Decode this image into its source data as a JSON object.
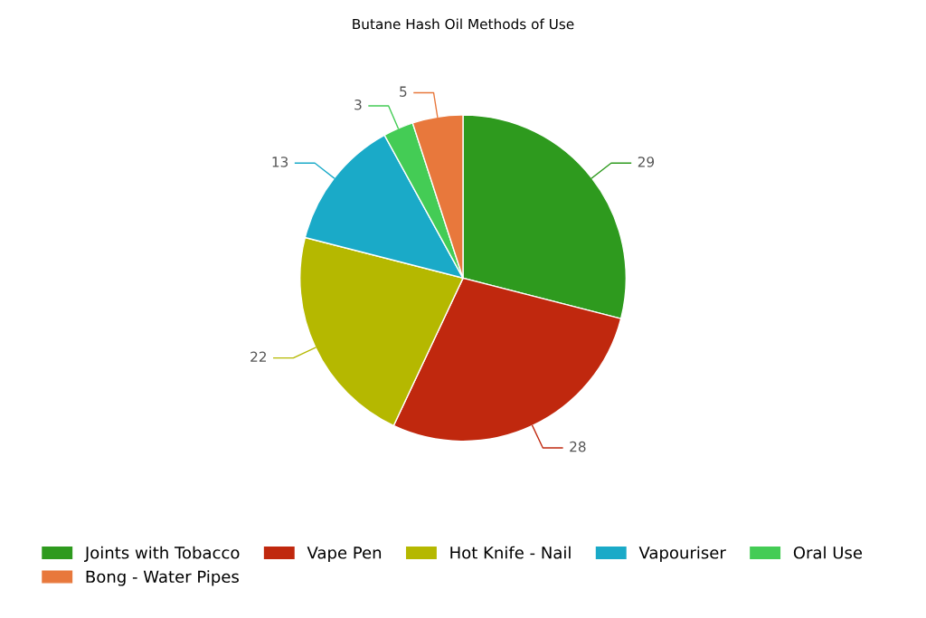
{
  "chart_data": {
    "type": "pie",
    "title": "Butane Hash Oil Methods of Use",
    "categories": [
      "Joints with Tobacco",
      "Vape Pen",
      "Hot Knife - Nail",
      "Vapouriser",
      "Oral Use",
      "Bong - Water Pipes"
    ],
    "values": [
      29,
      28,
      22,
      13,
      3,
      5
    ],
    "colors": [
      "#2e9a1e",
      "#c0280e",
      "#b5b800",
      "#1aaac8",
      "#44cc55",
      "#e8783c"
    ],
    "data_labels": true,
    "legend": "bottom"
  }
}
